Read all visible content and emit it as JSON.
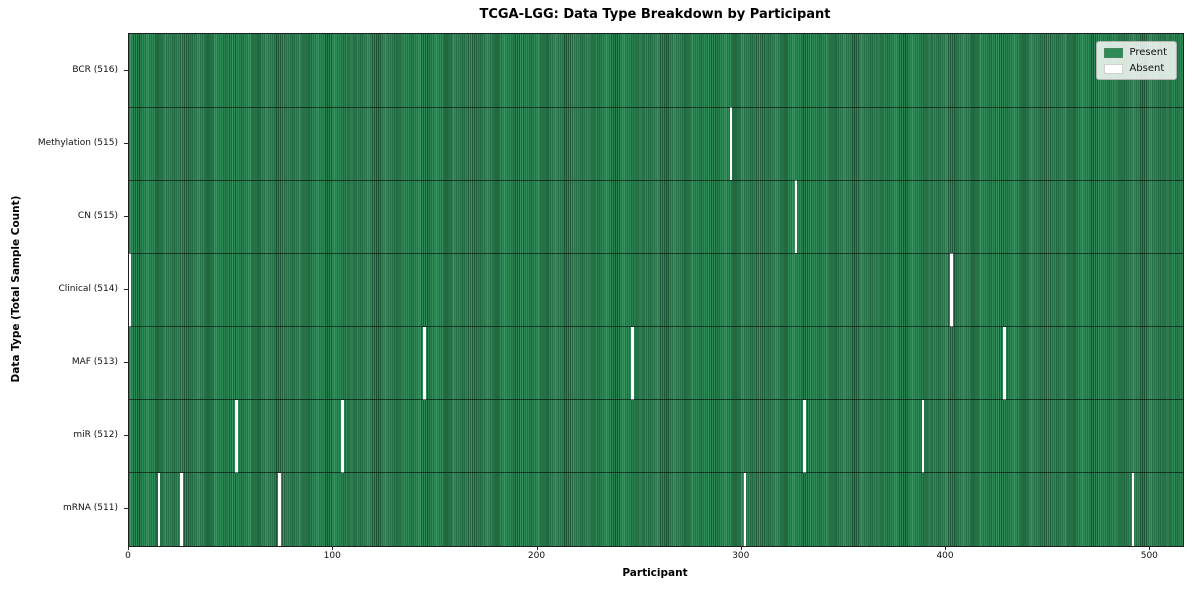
{
  "chart_data": {
    "type": "heatmap",
    "title": "TCGA-LGG: Data Type Breakdown by Participant",
    "xlabel": "Participant",
    "ylabel": "Data Type (Total Sample Count)",
    "x_ticks": [
      0,
      100,
      200,
      300,
      400,
      500
    ],
    "n_participants": 516,
    "grid": false,
    "legend_position": "upper right",
    "legend": [
      {
        "label": "Present",
        "color": "#2e8b57"
      },
      {
        "label": "Absent",
        "color": "#ffffff"
      }
    ],
    "colors": {
      "present": "#2e8b57",
      "absent": "#ffffff",
      "cell_edge": "rgba(0,0,0,0.35)"
    },
    "rows": [
      {
        "label": "BCR (516)",
        "data_type": "BCR",
        "sample_count": 516,
        "absent_participants": []
      },
      {
        "label": "Methylation (515)",
        "data_type": "Methylation",
        "sample_count": 515,
        "absent_participants": [
          294
        ]
      },
      {
        "label": "CN (515)",
        "data_type": "CN",
        "sample_count": 515,
        "absent_participants": [
          326
        ]
      },
      {
        "label": "Clinical (514)",
        "data_type": "Clinical",
        "sample_count": 514,
        "absent_participants": [
          0,
          402
        ]
      },
      {
        "label": "MAF (513)",
        "data_type": "MAF",
        "sample_count": 513,
        "absent_participants": [
          144,
          246,
          428
        ]
      },
      {
        "label": "miR (512)",
        "data_type": "miR",
        "sample_count": 512,
        "absent_participants": [
          52,
          104,
          330,
          388
        ]
      },
      {
        "label": "mRNA (511)",
        "data_type": "mRNA",
        "sample_count": 511,
        "absent_participants": [
          14,
          25,
          73,
          301,
          491
        ]
      }
    ]
  }
}
